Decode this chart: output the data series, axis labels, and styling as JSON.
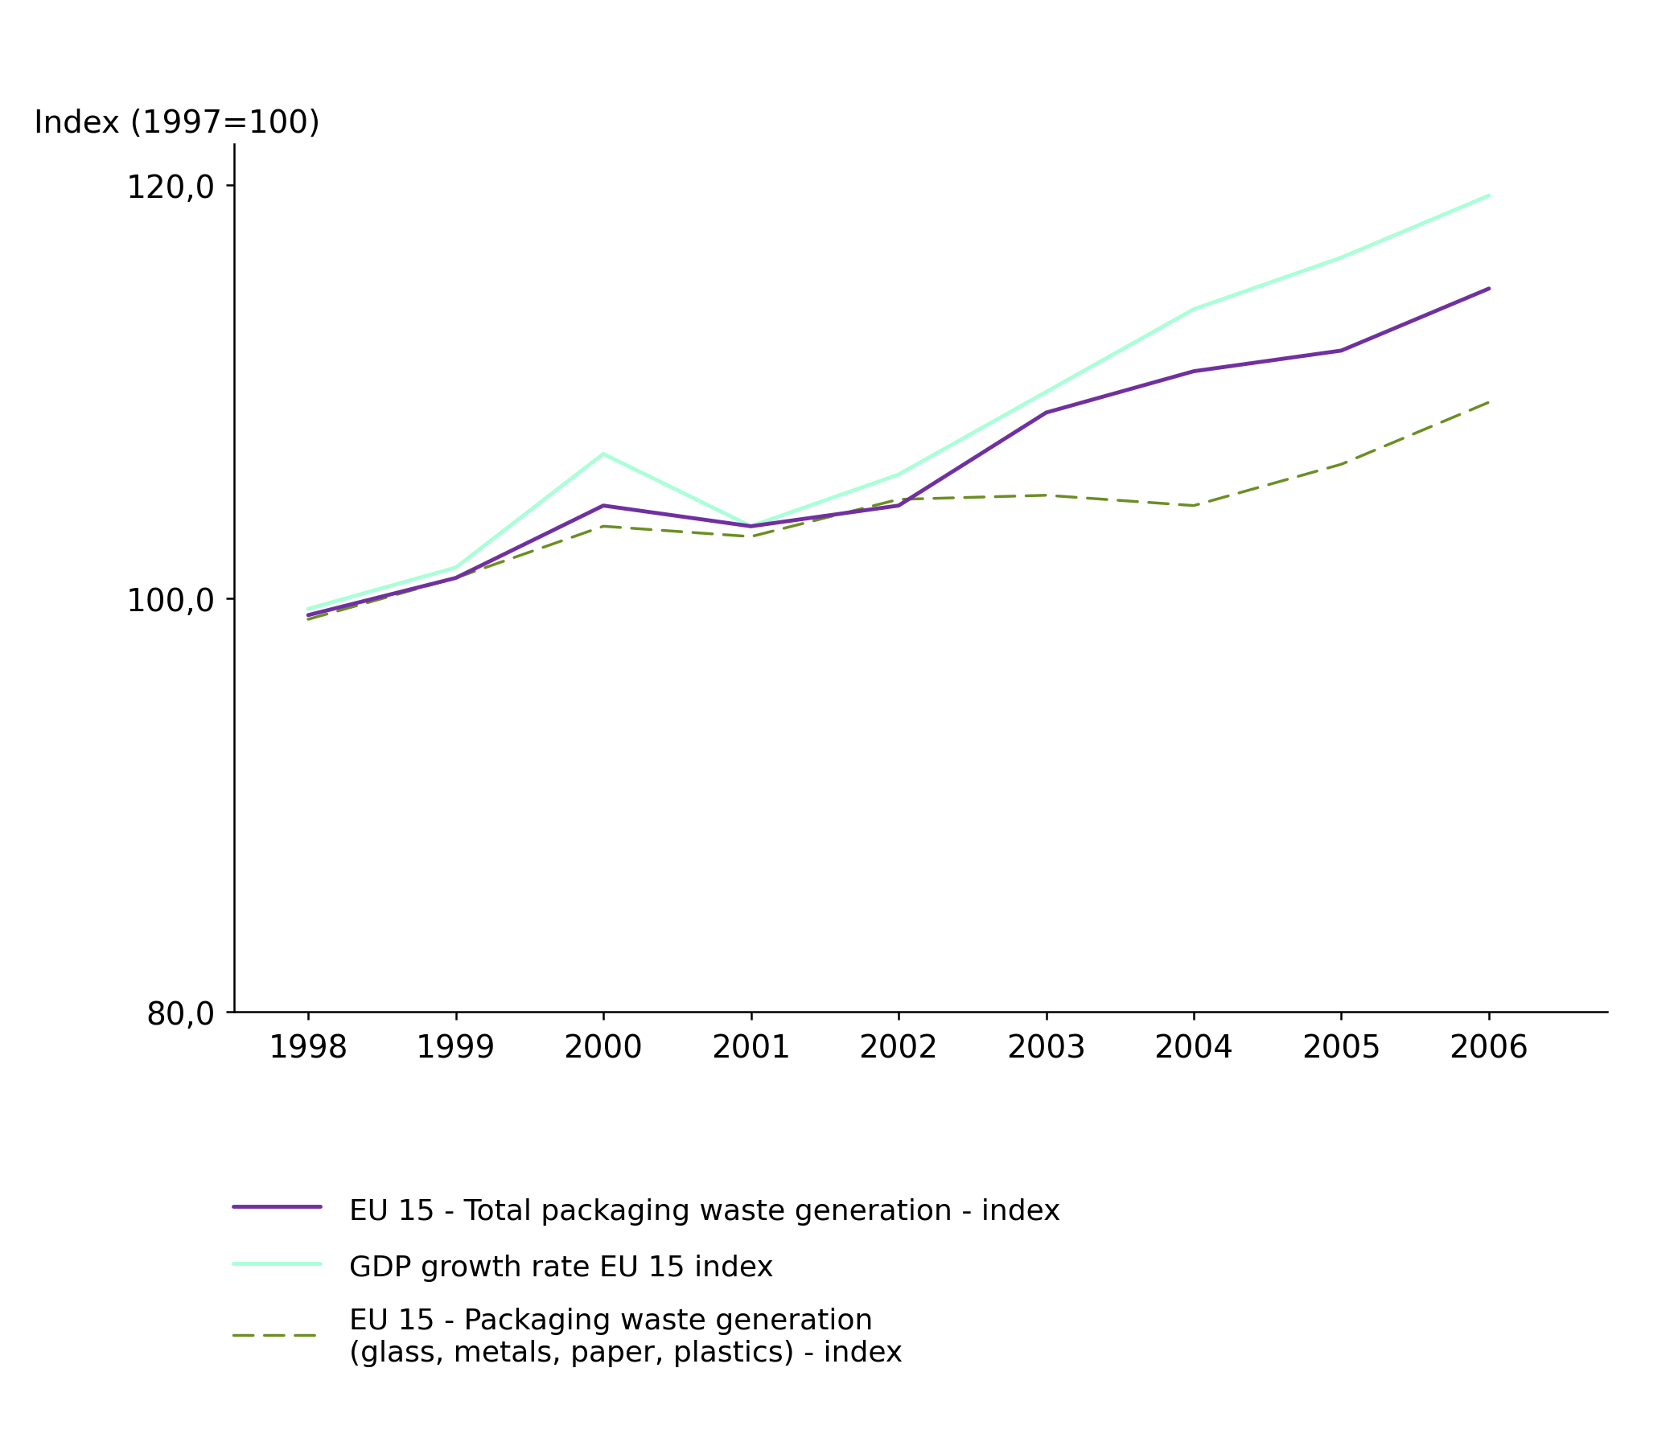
{
  "years": [
    1998,
    1999,
    2000,
    2001,
    2002,
    2003,
    2004,
    2005,
    2006
  ],
  "total_packaging_waste": [
    99.2,
    101.0,
    104.5,
    103.5,
    104.5,
    109.0,
    111.0,
    112.0,
    115.0
  ],
  "gdp_growth": [
    99.5,
    101.5,
    107.0,
    103.5,
    106.0,
    110.0,
    114.0,
    116.5,
    119.5
  ],
  "packaging_waste_subset": [
    99.0,
    101.0,
    103.5,
    103.0,
    104.8,
    105.0,
    104.5,
    106.5,
    109.5
  ],
  "total_packaging_color": "#7030A0",
  "gdp_color": "#AAFFD8",
  "subset_color": "#6B8E23",
  "axis_label": "Index (1997=100)",
  "ylim": [
    80.0,
    122.0
  ],
  "ytick_labels": [
    "80,0",
    "100,0",
    "120,0"
  ],
  "ytick_values": [
    80.0,
    100.0,
    120.0
  ],
  "legend_total": "EU 15 - Total packaging waste generation - index",
  "legend_gdp": "GDP growth rate EU 15 index",
  "legend_subset": "EU 15 - Packaging waste generation\n(glass, metals, paper, plastics) - index",
  "linewidth_solid": 3.5,
  "linewidth_dashed": 2.5,
  "font_family": "DejaVu Sans",
  "font_size_ticks": 28,
  "font_size_label": 28,
  "font_size_legend": 26
}
